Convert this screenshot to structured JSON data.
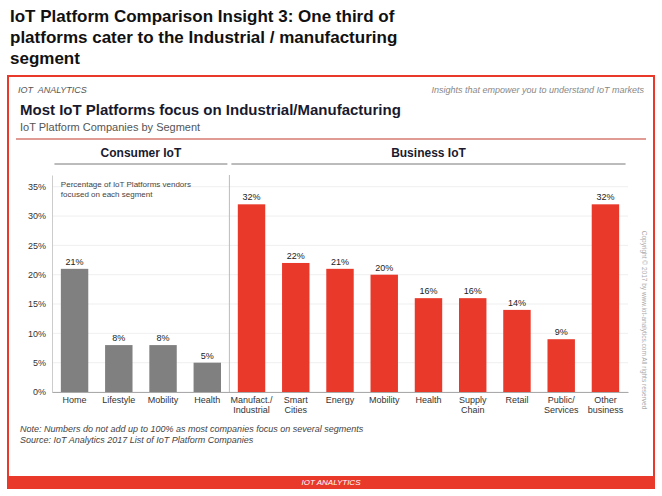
{
  "chart_data": {
    "type": "bar",
    "title": "Most IoT Platforms focus on Industrial/Manufacturing",
    "subtitle": "IoT Platform Companies by Segment",
    "ylabel": "Percentage of IoT Platforms vendors\nfocused on each segment",
    "categories": [
      "Home",
      "Lifestyle",
      "Mobility",
      "Health",
      "Manufact./\nIndustrial",
      "Smart\nCities",
      "Energy",
      "Mobility",
      "Health",
      "Supply\nChain",
      "Retail",
      "Public/\nServices",
      "Other\nbusiness"
    ],
    "values": [
      21,
      8,
      8,
      5,
      32,
      22,
      21,
      20,
      16,
      16,
      14,
      9,
      32
    ],
    "value_labels": [
      "21%",
      "8%",
      "8%",
      "5%",
      "32%",
      "22%",
      "21%",
      "20%",
      "16%",
      "16%",
      "14%",
      "9%",
      "32%"
    ],
    "colors": [
      "#808080",
      "#808080",
      "#808080",
      "#808080",
      "#e8392a",
      "#e8392a",
      "#e8392a",
      "#e8392a",
      "#e8392a",
      "#e8392a",
      "#e8392a",
      "#e8392a",
      "#e8392a"
    ],
    "groups": [
      {
        "name": "Consumer IoT",
        "size": 4
      },
      {
        "name": "Business IoT",
        "size": 9
      }
    ],
    "ylim": [
      0,
      37
    ],
    "yticks": [
      {
        "value": 0,
        "label": "0%"
      },
      {
        "value": 5,
        "label": "5%"
      },
      {
        "value": 10,
        "label": "10%"
      },
      {
        "value": 15,
        "label": "15%"
      },
      {
        "value": 20,
        "label": "20%"
      },
      {
        "value": 25,
        "label": "25%"
      },
      {
        "value": 30,
        "label": "30%"
      },
      {
        "value": 35,
        "label": "35%"
      }
    ],
    "grid": true,
    "data_labels": true,
    "annotations": [
      "IoT Platform Comparison Insight 3: One third of\nplatforms cater to the Industrial / manufacturing\nsegment",
      "IOT  ANALYTICS",
      "Insights that empower you to understand IoT markets",
      "Note: Numbers do not add up to 100% as most companies focus on several segments\nSource: IoT Analytics 2017 List of IoT Platform Companies",
      "Copyright © 2017 by www.iot-analytics.com All rights reserved",
      "IOT ANALYTICS"
    ]
  }
}
